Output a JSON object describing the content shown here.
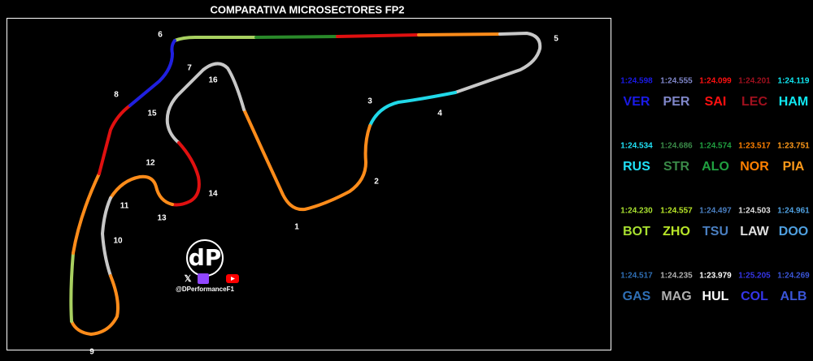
{
  "title": "COMPARATIVA MICROSECTORES FP2",
  "corners": [
    "1",
    "2",
    "3",
    "4",
    "5",
    "6",
    "7",
    "8",
    "9",
    "10",
    "11",
    "12",
    "13",
    "14",
    "15",
    "16"
  ],
  "watermark": {
    "logo": "dP",
    "handle": "@DPerformanceF1"
  },
  "drivers": [
    {
      "code": "VER",
      "time": "1:24.598",
      "color": "#1a1ae6"
    },
    {
      "code": "PER",
      "time": "1:24.555",
      "color": "#7f86c8"
    },
    {
      "code": "SAI",
      "time": "1:24.099",
      "color": "#ff1010"
    },
    {
      "code": "LEC",
      "time": "1:24.201",
      "color": "#a0101e"
    },
    {
      "code": "HAM",
      "time": "1:24.119",
      "color": "#10e6f0"
    },
    {
      "code": "RUS",
      "time": "1:24.534",
      "color": "#20e0f5"
    },
    {
      "code": "STR",
      "time": "1:24.686",
      "color": "#3a8a48"
    },
    {
      "code": "ALO",
      "time": "1:24.574",
      "color": "#20a040"
    },
    {
      "code": "NOR",
      "time": "1:23.517",
      "color": "#ff8000"
    },
    {
      "code": "PIA",
      "time": "1:23.751",
      "color": "#ff9a1a"
    },
    {
      "code": "BOT",
      "time": "1:24.230",
      "color": "#a8e030"
    },
    {
      "code": "ZHO",
      "time": "1:24.557",
      "color": "#b8e628"
    },
    {
      "code": "TSU",
      "time": "1:24.497",
      "color": "#4a7fc1"
    },
    {
      "code": "LAW",
      "time": "1:24.503",
      "color": "#e0e0e0"
    },
    {
      "code": "DOO",
      "time": "1:24.961",
      "color": "#4fa0e0"
    },
    {
      "code": "GAS",
      "time": "1:24.517",
      "color": "#2f6fb5"
    },
    {
      "code": "MAG",
      "time": "1:24.235",
      "color": "#b0b0b0"
    },
    {
      "code": "HUL",
      "time": "1:23.979",
      "color": "#ffffff"
    },
    {
      "code": "COL",
      "time": "1:25.205",
      "color": "#3535e8"
    },
    {
      "code": "ALB",
      "time": "1:24.269",
      "color": "#3a55d8"
    }
  ]
}
